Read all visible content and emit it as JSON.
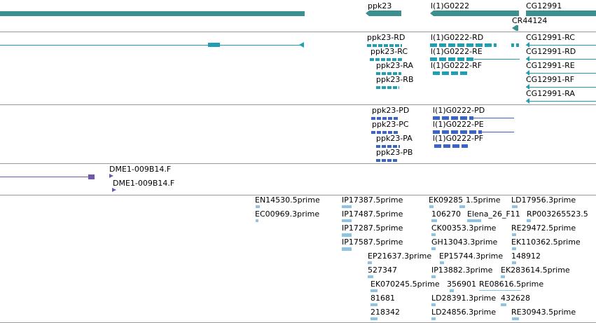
{
  "colors": {
    "gene": "#3a8f8f",
    "transcript": "#1e9fb4",
    "protein": "#3b64c8",
    "clone": "#7059a8",
    "est": "#8ec3e3",
    "separator": "#9a9a9a"
  },
  "tracks": {
    "genes": [
      "ppk23",
      "l(1)G0222",
      "CG12991",
      "CR44124"
    ],
    "transcripts": [
      "ppk23-RD",
      "ppk23-RC",
      "ppk23-RA",
      "ppk23-RB",
      "l(1)G0222-RD",
      "l(1)G0222-RE",
      "l(1)G0222-RF",
      "CG12991-RC",
      "CG12991-RD",
      "CG12991-RE",
      "CG12991-RF",
      "CG12991-RA"
    ],
    "proteins": [
      "ppk23-PD",
      "ppk23-PC",
      "ppk23-PA",
      "ppk23-PB",
      "l(1)G0222-PD",
      "l(1)G0222-PE",
      "l(1)G0222-PF"
    ],
    "clones": [
      "DME1-009B14.F",
      "DME1-009B14.F"
    ],
    "ests": [
      "EN14530.5prime",
      "EC00969.3prime",
      "IP17387.5prime",
      "IP17487.5prime",
      "IP17287.5prime",
      "IP17587.5prime",
      "EP21637.3prime",
      "527347",
      "EK070245.5prime",
      "81681",
      "218342",
      "EK09285",
      "1.5prime",
      "106270",
      "Elena_26_F11",
      "CK00353.3prime",
      "GH13043.3prime",
      "EP15744.3prime",
      "IP13882.3prime",
      "356901",
      "RE08616.5prime",
      "LD28391.3prime",
      "432628",
      "LD24856.3prime",
      "LD17956.3prime",
      "RP003265523.5",
      "RE29472.5prime",
      "EK110362.5prime",
      "148912",
      "EK283614.5prime",
      "RE30943.5prime"
    ]
  }
}
